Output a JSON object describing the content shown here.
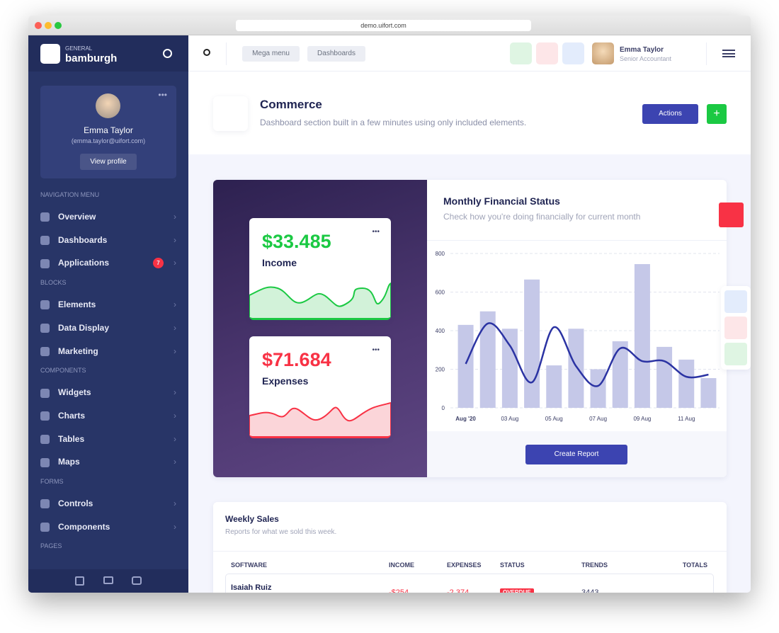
{
  "browser": {
    "url": "demo.uifort.com"
  },
  "sidebar": {
    "brand_small": "GENERAL",
    "brand": "bamburgh",
    "user": {
      "name": "Emma Taylor",
      "email": "(emma.taylor@uifort.com)",
      "button": "View profile"
    },
    "sections": [
      {
        "title": "NAVIGATION MENU",
        "items": [
          {
            "label": "Overview"
          },
          {
            "label": "Dashboards"
          },
          {
            "label": "Applications",
            "badge": 7
          }
        ]
      },
      {
        "title": "BLOCKS",
        "items": [
          {
            "label": "Elements"
          },
          {
            "label": "Data Display"
          },
          {
            "label": "Marketing"
          }
        ]
      },
      {
        "title": "COMPONENTS",
        "items": [
          {
            "label": "Widgets"
          },
          {
            "label": "Charts"
          },
          {
            "label": "Tables"
          },
          {
            "label": "Maps"
          }
        ]
      },
      {
        "title": "FORMS",
        "items": [
          {
            "label": "Controls"
          },
          {
            "label": "Components"
          }
        ]
      },
      {
        "title": "PAGES",
        "items": []
      }
    ]
  },
  "header": {
    "buttons": [
      "Mega menu",
      "Dashboards"
    ],
    "user": {
      "name": "Emma Taylor",
      "role": "Senior Accountant"
    }
  },
  "page": {
    "title": "Commerce",
    "subtitle": "Dashboard section built in a few minutes using only included elements.",
    "actions": "Actions"
  },
  "income": {
    "value": "$33.485",
    "label": "Income"
  },
  "expenses": {
    "value": "$71.684",
    "label": "Expenses"
  },
  "chart_data": {
    "type": "bar",
    "title": "Monthly Financial Status",
    "subtitle": "Check how you're doing financially for current month",
    "categories": [
      "Aug '20",
      null,
      "03 Aug",
      null,
      "05 Aug",
      null,
      "07 Aug",
      null,
      "09 Aug",
      null,
      "11 Aug",
      null
    ],
    "series": [
      {
        "type": "bar",
        "color": "#c5c8e8",
        "values": [
          430,
          500,
          410,
          665,
          220,
          410,
          200,
          345,
          745,
          316,
          250,
          154
        ]
      },
      {
        "type": "line",
        "color": "#2b33a3",
        "values": [
          228,
          437,
          323,
          132,
          418,
          216,
          114,
          308,
          242,
          242,
          161,
          172
        ]
      }
    ],
    "ylim": [
      0,
      800
    ],
    "yticks": [
      0,
      200,
      400,
      600,
      800
    ],
    "grid": true
  },
  "report_button": "Create Report",
  "weekly_sales": {
    "title": "Weekly Sales",
    "subtitle": "Reports for what we sold this week.",
    "columns": [
      "SOFTWARE",
      "INCOME",
      "EXPENSES",
      "STATUS",
      "TRENDS",
      "TOTALS"
    ],
    "rows": [
      [
        "Isaiah Ruiz",
        "-$254",
        "-2,374",
        "OVERDUE",
        "3443"
      ]
    ]
  }
}
